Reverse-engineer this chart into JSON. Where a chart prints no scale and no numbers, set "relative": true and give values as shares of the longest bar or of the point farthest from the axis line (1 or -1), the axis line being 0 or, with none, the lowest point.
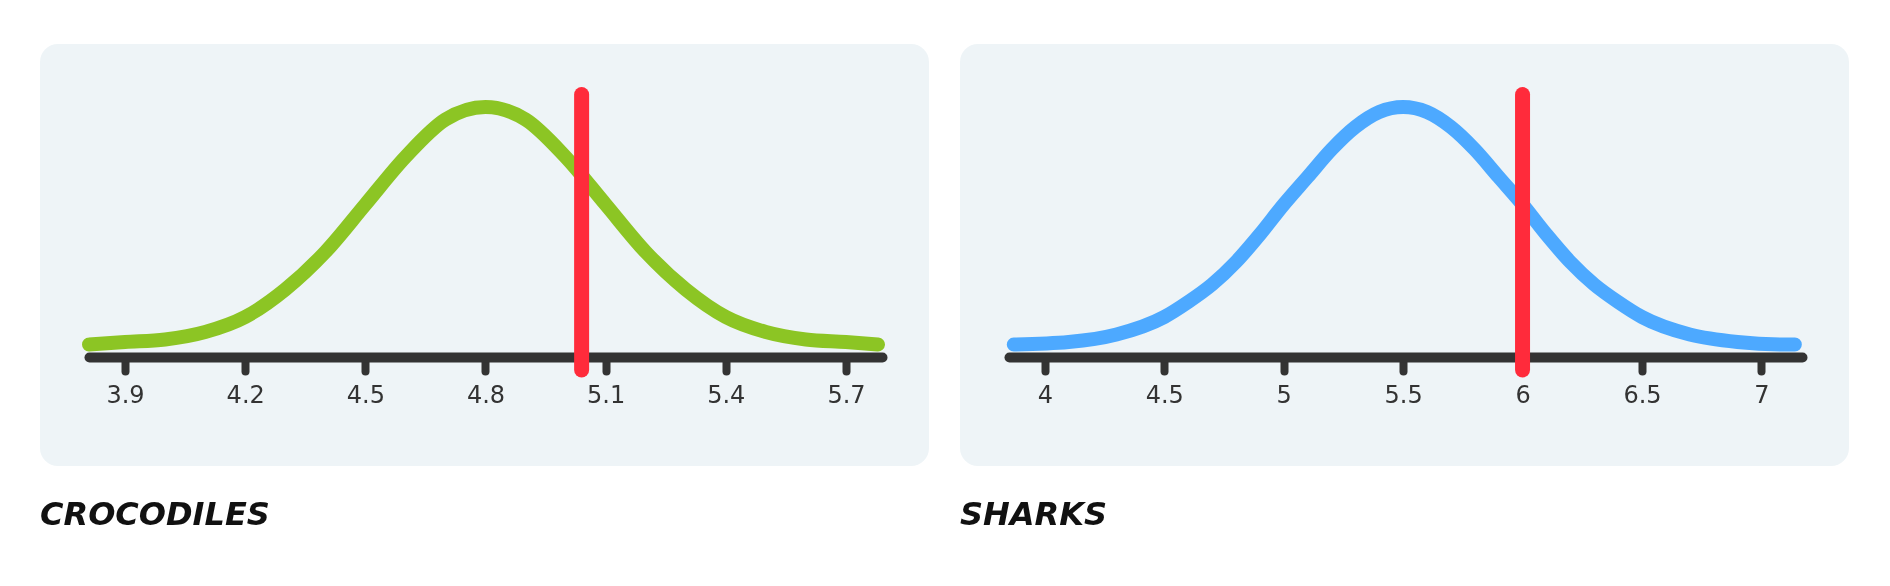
{
  "chart_data": [
    {
      "type": "line",
      "title": "CROCODILES",
      "relative": true,
      "xlim": [
        3.81,
        5.79
      ],
      "xticks": [
        3.9,
        4.2,
        4.5,
        4.8,
        5.1,
        5.4,
        5.7
      ],
      "tick_labels": "x",
      "series": [
        {
          "color": "#8cc524",
          "x": [
            3.81,
            3.9,
            4.0,
            4.1,
            4.2,
            4.3,
            4.4,
            4.5,
            4.6,
            4.7,
            4.8,
            4.9,
            5.0,
            5.1,
            5.2,
            5.3,
            5.4,
            5.5,
            5.6,
            5.7,
            5.78
          ],
          "values": [
            0.05,
            0.06,
            0.07,
            0.1,
            0.16,
            0.27,
            0.42,
            0.61,
            0.8,
            0.95,
            1.0,
            0.95,
            0.8,
            0.61,
            0.42,
            0.27,
            0.16,
            0.1,
            0.07,
            0.06,
            0.05
          ]
        }
      ],
      "ref_lines": [
        {
          "axis": "x",
          "value": 5.04,
          "color": "#ff2b3b"
        }
      ]
    },
    {
      "type": "line",
      "title": "SHARKS",
      "relative": true,
      "xlim": [
        3.85,
        7.17
      ],
      "xticks": [
        4,
        4.5,
        5,
        5.5,
        6,
        6.5,
        7
      ],
      "tick_labels": "x",
      "series": [
        {
          "color": "#4da9ff",
          "x": [
            3.87,
            4.1,
            4.3,
            4.5,
            4.6,
            4.7,
            4.8,
            4.9,
            5.0,
            5.1,
            5.2,
            5.3,
            5.4,
            5.5,
            5.6,
            5.7,
            5.8,
            5.9,
            6.0,
            6.1,
            6.2,
            6.3,
            6.4,
            6.5,
            6.7,
            6.9,
            7.1,
            7.14
          ],
          "values": [
            0.05,
            0.06,
            0.09,
            0.16,
            0.22,
            0.29,
            0.38,
            0.49,
            0.61,
            0.72,
            0.83,
            0.92,
            0.98,
            1.0,
            0.98,
            0.92,
            0.83,
            0.72,
            0.61,
            0.49,
            0.38,
            0.29,
            0.22,
            0.16,
            0.09,
            0.06,
            0.05,
            0.05
          ]
        }
      ],
      "ref_lines": [
        {
          "axis": "x",
          "value": 6.0,
          "color": "#ff2b3b"
        }
      ]
    }
  ]
}
